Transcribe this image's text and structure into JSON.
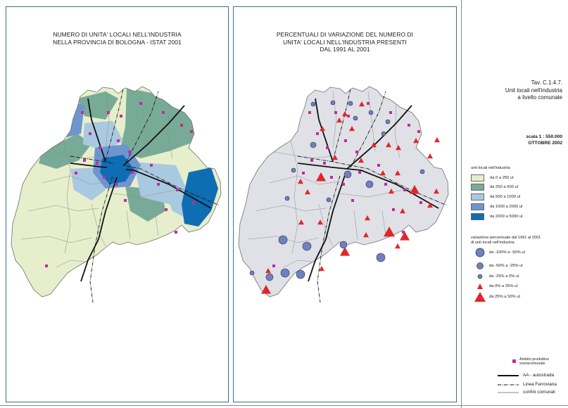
{
  "maps": {
    "left": {
      "title_lines": [
        "NUMERO DI UNITA' LOCALI NELL'INDUSTRIA",
        "NELLA PROVINCIA DI BOLOGNA - ISTAT 2001"
      ]
    },
    "right": {
      "title_lines": [
        "PERCENTUALI DI VARIAZIONE DEL NUMERO DI",
        "UNITA' LOCALI NELL'INDUSTRIA PRESENTI",
        "DAL 1991 AL 2001"
      ]
    }
  },
  "sheet": {
    "tav": "Tav. C.1.4.7.",
    "subtitle_1": "Unit   locali nell'industria",
    "subtitle_2": "a livello comunale",
    "scale": "scala 1 : 550.000",
    "date": "OTTOBRE 2002"
  },
  "legend_classes": {
    "heading": "unit   locali nell'industria",
    "items": [
      {
        "label": "da 0 a 250 ul",
        "color": "#e6eecb"
      },
      {
        "label": "da 250 a 500 ul",
        "color": "#78ab97"
      },
      {
        "label": "da 500 a 1000 ul",
        "color": "#a9c9e1"
      },
      {
        "label": "da 1000 a 2000 ul",
        "color": "#6e95d0"
      },
      {
        "label": "da 2000 a 5000 ul",
        "color": "#0f6db4"
      }
    ]
  },
  "legend_variation": {
    "heading_1": "variazione percentuale dal 1991 al 2001",
    "heading_2": "di unit   locali nell'industria",
    "items": [
      {
        "label": "da -100% a -50%  ul",
        "shape": "circle",
        "size": "large"
      },
      {
        "label": "da -50% a -25%  ul",
        "shape": "circle",
        "size": "medium"
      },
      {
        "label": "da -25%  a 0%  ul",
        "shape": "circle",
        "size": "small"
      },
      {
        "label": "da 0% a 25%  ul",
        "shape": "triangle",
        "size": "small"
      },
      {
        "label": "da 25% a 50% ul",
        "shape": "triangle",
        "size": "large"
      }
    ],
    "circle_color": "#6f7fc3",
    "triangle_color": "#e1262b"
  },
  "legend_lines": {
    "ambito_1": "Ambito produttivo",
    "ambito_2": "sovracomunale",
    "ambito_color": "#c22a9c",
    "highway": "AA - autostrada",
    "railway": "Linea Ferroviaria",
    "boundary": "confini comunali"
  }
}
